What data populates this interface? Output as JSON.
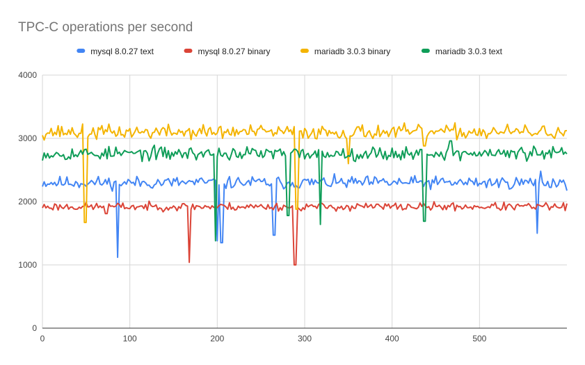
{
  "chart_data": {
    "type": "line",
    "title": "TPC-C operations per second",
    "xlabel": "",
    "ylabel": "",
    "xlim": [
      0,
      600
    ],
    "ylim": [
      0,
      4000
    ],
    "x_ticks": [
      0,
      100,
      200,
      300,
      400,
      500
    ],
    "y_ticks": [
      0,
      1000,
      2000,
      3000,
      4000
    ],
    "grid": true,
    "legend_position": "top",
    "x_step": 2,
    "series": [
      {
        "name": "mysql 8.0.27 text",
        "color": "#4285f4",
        "base": 2300,
        "noise": 70,
        "seed": 11,
        "spikes": [
          [
            86,
            1120
          ],
          [
            200,
            1380
          ],
          [
            205,
            1350
          ],
          [
            265,
            1470
          ],
          [
            566,
            1500
          ],
          [
            570,
            2480
          ]
        ]
      },
      {
        "name": "mysql 8.0.27 binary",
        "color": "#db4437",
        "base": 1920,
        "noise": 45,
        "seed": 23,
        "spikes": [
          [
            73,
            1810
          ],
          [
            168,
            1040
          ],
          [
            289,
            1000
          ],
          [
            352,
            1850
          ]
        ]
      },
      {
        "name": "mariadb 3.0.3 binary",
        "color": "#f4b400",
        "base": 3100,
        "noise": 80,
        "seed": 37,
        "spikes": [
          [
            49,
            1670
          ],
          [
            291,
            1880
          ],
          [
            350,
            2600
          ],
          [
            437,
            2880
          ]
        ]
      },
      {
        "name": "mariadb 3.0.3 text",
        "color": "#0f9d58",
        "base": 2760,
        "noise": 75,
        "seed": 53,
        "spikes": [
          [
            198,
            1380
          ],
          [
            281,
            1780
          ],
          [
            318,
            1640
          ],
          [
            437,
            1690
          ],
          [
            467,
            2960
          ]
        ]
      }
    ]
  }
}
